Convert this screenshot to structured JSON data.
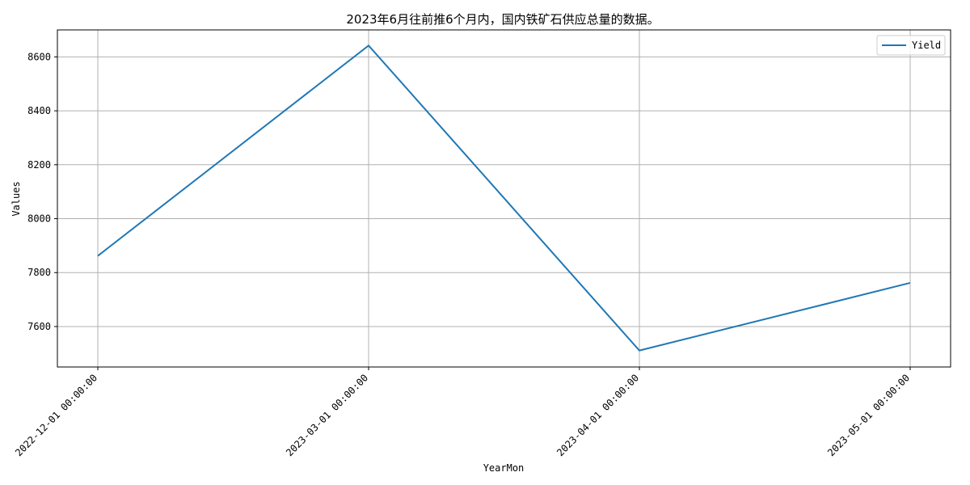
{
  "chart_data": {
    "type": "line",
    "title": "2023年6月往前推6个月内，国内铁矿石供应总量的数据。",
    "xlabel": "YearMon",
    "ylabel": "Values",
    "categories": [
      "2022-12-01 00:00:00",
      "2023-03-01 00:00:00",
      "2023-04-01 00:00:00",
      "2023-05-01 00:00:00"
    ],
    "series": [
      {
        "name": "Yield",
        "values": [
          7862,
          8642,
          7511,
          7762
        ],
        "color": "#1f77b4"
      }
    ],
    "ylim": [
      7450,
      8700
    ],
    "yticks": [
      7600,
      7800,
      8000,
      8200,
      8400,
      8600
    ],
    "grid": true,
    "legend_position": "top-right"
  }
}
